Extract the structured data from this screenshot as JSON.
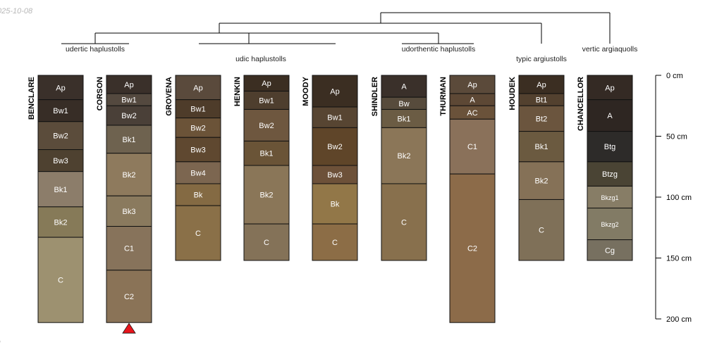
{
  "corner_date": "025-10-08",
  "corner_mark": "l",
  "depth_axis": {
    "unit": "cm",
    "ticks": [
      {
        "value": 0,
        "label": "0 cm"
      },
      {
        "value": 50,
        "label": "50 cm"
      },
      {
        "value": 100,
        "label": "100 cm"
      },
      {
        "value": 150,
        "label": "150 cm"
      },
      {
        "value": 200,
        "label": "200 cm"
      }
    ]
  },
  "groups": [
    {
      "label": "udertic haplustolls"
    },
    {
      "label": "udic haplustolls"
    },
    {
      "label": "udorthentic haplustolls"
    },
    {
      "label": "typic argiustolls"
    },
    {
      "label": "vertic argiaquolls"
    }
  ],
  "profiles": [
    {
      "name": "BENCLARE",
      "horizons": [
        {
          "name": "Ap",
          "top": 0,
          "bottom": 20,
          "color": "#3a302a"
        },
        {
          "name": "Bw1",
          "top": 20,
          "bottom": 38,
          "color": "#372d26"
        },
        {
          "name": "Bw2",
          "top": 38,
          "bottom": 61,
          "color": "#5b4c3b"
        },
        {
          "name": "Bw3",
          "top": 61,
          "bottom": 79,
          "color": "#4e4130"
        },
        {
          "name": "Bk1",
          "top": 79,
          "bottom": 108,
          "color": "#8c7d6a"
        },
        {
          "name": "Bk2",
          "top": 108,
          "bottom": 133,
          "color": "#867a58"
        },
        {
          "name": "C",
          "top": 133,
          "bottom": 203,
          "color": "#9d9170"
        }
      ]
    },
    {
      "name": "CORSON",
      "truncated": true,
      "horizons": [
        {
          "name": "Ap",
          "top": 0,
          "bottom": 15,
          "color": "#3a302a"
        },
        {
          "name": "Bw1",
          "top": 15,
          "bottom": 25,
          "color": "#54493f"
        },
        {
          "name": "Bw2",
          "top": 25,
          "bottom": 41,
          "color": "#4a4038"
        },
        {
          "name": "Bk1",
          "top": 41,
          "bottom": 64,
          "color": "#6e624f"
        },
        {
          "name": "Bk2",
          "top": 64,
          "bottom": 99,
          "color": "#8e7a5d"
        },
        {
          "name": "Bk3",
          "top": 99,
          "bottom": 124,
          "color": "#8a7a5e"
        },
        {
          "name": "C1",
          "top": 124,
          "bottom": 160,
          "color": "#87735b"
        },
        {
          "name": "C2",
          "top": 160,
          "bottom": 203,
          "color": "#8a7357"
        }
      ]
    },
    {
      "name": "GROVENA",
      "horizons": [
        {
          "name": "Ap",
          "top": 0,
          "bottom": 20,
          "color": "#5a4a3c"
        },
        {
          "name": "Bw1",
          "top": 20,
          "bottom": 35,
          "color": "#4e3c2a"
        },
        {
          "name": "Bw2",
          "top": 35,
          "bottom": 51,
          "color": "#6b5338"
        },
        {
          "name": "Bw3",
          "top": 51,
          "bottom": 71,
          "color": "#5f4830"
        },
        {
          "name": "Bw4",
          "top": 71,
          "bottom": 89,
          "color": "#7c6650"
        },
        {
          "name": "Bk",
          "top": 89,
          "bottom": 107,
          "color": "#846a43"
        },
        {
          "name": "C",
          "top": 107,
          "bottom": 152,
          "color": "#8a7048"
        }
      ]
    },
    {
      "name": "HENKIN",
      "horizons": [
        {
          "name": "Ap",
          "top": 0,
          "bottom": 13,
          "color": "#3b2e22"
        },
        {
          "name": "Bw1",
          "top": 13,
          "bottom": 28,
          "color": "#4e3e2e"
        },
        {
          "name": "Bw2",
          "top": 28,
          "bottom": 54,
          "color": "#6e573f"
        },
        {
          "name": "Bk1",
          "top": 54,
          "bottom": 74,
          "color": "#6a5437"
        },
        {
          "name": "Bk2",
          "top": 74,
          "bottom": 122,
          "color": "#8a7658"
        },
        {
          "name": "C",
          "top": 122,
          "bottom": 152,
          "color": "#847258"
        }
      ]
    },
    {
      "name": "MOODY",
      "horizons": [
        {
          "name": "Ap",
          "top": 0,
          "bottom": 26,
          "color": "#3b2e22"
        },
        {
          "name": "Bw1",
          "top": 26,
          "bottom": 43,
          "color": "#574532"
        },
        {
          "name": "Bw2",
          "top": 43,
          "bottom": 74,
          "color": "#5f4529"
        },
        {
          "name": "Bw3",
          "top": 74,
          "bottom": 89,
          "color": "#6d5139"
        },
        {
          "name": "Bk",
          "top": 89,
          "bottom": 122,
          "color": "#927748"
        },
        {
          "name": "C",
          "top": 122,
          "bottom": 152,
          "color": "#8c6d46"
        }
      ]
    },
    {
      "name": "SHINDLER",
      "horizons": [
        {
          "name": "A",
          "top": 0,
          "bottom": 18,
          "color": "#3a302a"
        },
        {
          "name": "Bw",
          "top": 18,
          "bottom": 28,
          "color": "#574b3c"
        },
        {
          "name": "Bk1",
          "top": 28,
          "bottom": 43,
          "color": "#6b5c44"
        },
        {
          "name": "Bk2",
          "top": 43,
          "bottom": 89,
          "color": "#8b7658"
        },
        {
          "name": "C",
          "top": 89,
          "bottom": 152,
          "color": "#88704d"
        }
      ]
    },
    {
      "name": "THURMAN",
      "horizons": [
        {
          "name": "Ap",
          "top": 0,
          "bottom": 15,
          "color": "#5b4a3a"
        },
        {
          "name": "A",
          "top": 15,
          "bottom": 25,
          "color": "#5d4835"
        },
        {
          "name": "AC",
          "top": 25,
          "bottom": 36,
          "color": "#6a523a"
        },
        {
          "name": "C1",
          "top": 36,
          "bottom": 81,
          "color": "#8a715a"
        },
        {
          "name": "C2",
          "top": 81,
          "bottom": 203,
          "color": "#8c6b49"
        }
      ]
    },
    {
      "name": "HOUDEK",
      "horizons": [
        {
          "name": "Ap",
          "top": 0,
          "bottom": 15,
          "color": "#3b2e22"
        },
        {
          "name": "Bt1",
          "top": 15,
          "bottom": 25,
          "color": "#53412f"
        },
        {
          "name": "Bt2",
          "top": 25,
          "bottom": 46,
          "color": "#6b553e"
        },
        {
          "name": "Bk1",
          "top": 46,
          "bottom": 71,
          "color": "#6b5a40"
        },
        {
          "name": "Bk2",
          "top": 71,
          "bottom": 102,
          "color": "#857157"
        },
        {
          "name": "C",
          "top": 102,
          "bottom": 152,
          "color": "#7f7058"
        }
      ]
    },
    {
      "name": "CHANCELLOR",
      "horizons": [
        {
          "name": "Ap",
          "top": 0,
          "bottom": 20,
          "color": "#342a24"
        },
        {
          "name": "A",
          "top": 20,
          "bottom": 46,
          "color": "#2e2622"
        },
        {
          "name": "Btg",
          "top": 46,
          "bottom": 71,
          "color": "#2d2b29"
        },
        {
          "name": "Btzg",
          "top": 71,
          "bottom": 91,
          "color": "#4a4434"
        },
        {
          "name": "Bkzg1",
          "top": 91,
          "bottom": 109,
          "color": "#877d66"
        },
        {
          "name": "Bkzg2",
          "top": 109,
          "bottom": 135,
          "color": "#827b65"
        },
        {
          "name": "Cg",
          "top": 135,
          "bottom": 152,
          "color": "#777060"
        }
      ]
    }
  ]
}
